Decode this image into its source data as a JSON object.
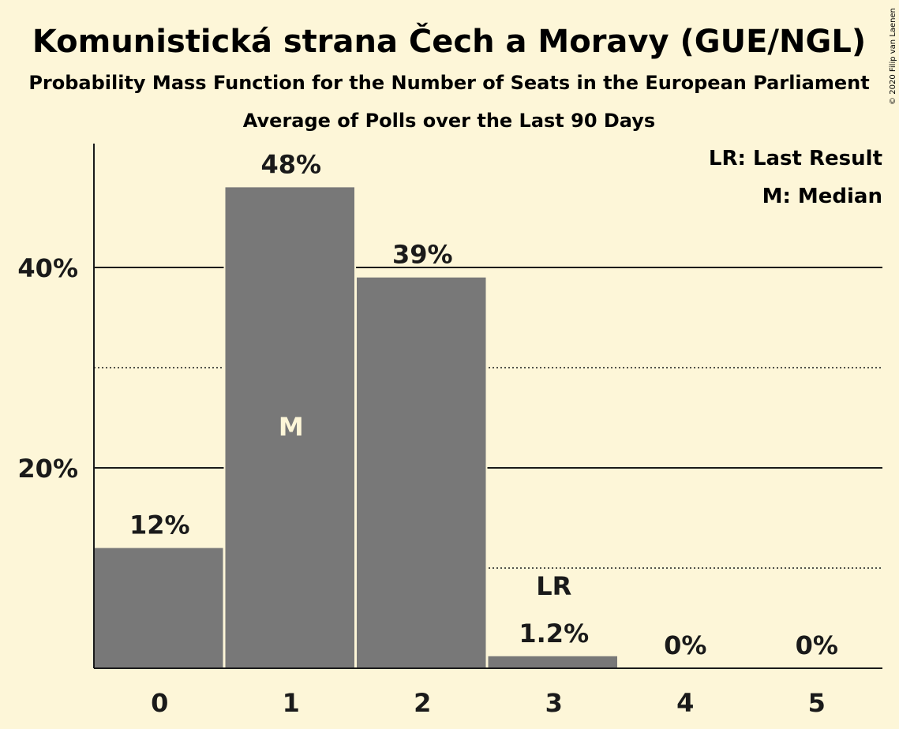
{
  "chart_data": {
    "type": "bar",
    "title": "Komunistická strana Čech a Moravy (GUE/NGL)",
    "subtitle": "Probability Mass Function for the Number of Seats in the European Parliament",
    "subtitle2": "Average of Polls over the Last 90 Days",
    "copyright": "© 2020 Filip van Laenen",
    "categories": [
      "0",
      "1",
      "2",
      "3",
      "4",
      "5"
    ],
    "values": [
      12,
      48,
      39,
      1.2,
      0,
      0
    ],
    "value_labels": [
      "12%",
      "48%",
      "39%",
      "1.2%",
      "0%",
      "0%"
    ],
    "ylim": [
      0,
      52
    ],
    "y_major_ticks": [
      20,
      40
    ],
    "y_major_tick_labels": [
      "20%",
      "40%"
    ],
    "y_minor_ticks": [
      10,
      30
    ],
    "median_index": 1,
    "median_marker": "M",
    "last_result_index": 3,
    "last_result_marker": "LR",
    "legend": [
      "LR: Last Result",
      "M: Median"
    ],
    "legend_position": "top-right",
    "colors": {
      "background": "#fdf6d8",
      "bar": "#787878",
      "text": "#1a1a1a",
      "median_text": "#fdf6d8"
    }
  }
}
